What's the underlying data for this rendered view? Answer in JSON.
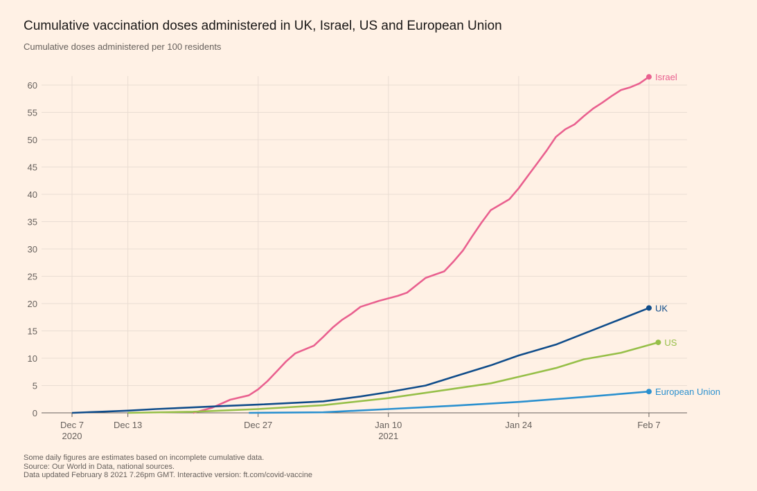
{
  "title": "Cumulative vaccination doses administered in UK, Israel, US and European Union",
  "subtitle": "Cumulative doses administered per 100 residents",
  "footnotes": [
    "Some daily figures are estimates based on incomplete cumulative data.",
    "Source: Our World in Data, national sources.",
    "Data updated February 8 2021 7.26pm GMT. Interactive version: ft.com/covid-vaccine"
  ],
  "chart_data": {
    "type": "line",
    "title": "Cumulative vaccination doses administered in UK, Israel, US and European Union",
    "ylabel": "Cumulative doses administered per 100 residents",
    "xlim": [
      "2020-12-07",
      "2021-02-07"
    ],
    "ylim": [
      0,
      60
    ],
    "yticks": [
      0,
      5,
      10,
      15,
      20,
      25,
      30,
      35,
      40,
      45,
      50,
      55,
      60
    ],
    "xticks": [
      {
        "date": "2020-12-07",
        "label": "Dec 7",
        "sub": "2020"
      },
      {
        "date": "2020-12-13",
        "label": "Dec 13",
        "sub": ""
      },
      {
        "date": "2020-12-27",
        "label": "Dec 27",
        "sub": ""
      },
      {
        "date": "2021-01-10",
        "label": "Jan 10",
        "sub": "2021"
      },
      {
        "date": "2021-01-24",
        "label": "Jan 24",
        "sub": ""
      },
      {
        "date": "2021-02-07",
        "label": "Feb 7",
        "sub": ""
      }
    ],
    "grid": true,
    "legend": "end-of-line labels",
    "series": [
      {
        "name": "Israel",
        "color": "#e9608f",
        "points": [
          [
            "2020-12-20",
            0
          ],
          [
            "2020-12-22",
            0.9
          ],
          [
            "2020-12-24",
            2.4
          ],
          [
            "2020-12-26",
            3.2
          ],
          [
            "2020-12-27",
            4.3
          ],
          [
            "2020-12-28",
            5.8
          ],
          [
            "2020-12-29",
            7.6
          ],
          [
            "2020-12-30",
            9.4
          ],
          [
            "2020-12-31",
            10.9
          ],
          [
            "2021-01-02",
            12.3
          ],
          [
            "2021-01-03",
            13.9
          ],
          [
            "2021-01-04",
            15.6
          ],
          [
            "2021-01-05",
            17
          ],
          [
            "2021-01-06",
            18.1
          ],
          [
            "2021-01-07",
            19.4
          ],
          [
            "2021-01-09",
            20.5
          ],
          [
            "2021-01-11",
            21.4
          ],
          [
            "2021-01-12",
            22
          ],
          [
            "2021-01-14",
            24.7
          ],
          [
            "2021-01-16",
            25.9
          ],
          [
            "2021-01-17",
            27.7
          ],
          [
            "2021-01-18",
            29.7
          ],
          [
            "2021-01-19",
            32.3
          ],
          [
            "2021-01-20",
            34.8
          ],
          [
            "2021-01-21",
            37.1
          ],
          [
            "2021-01-23",
            39.1
          ],
          [
            "2021-01-24",
            41.1
          ],
          [
            "2021-01-25",
            43.4
          ],
          [
            "2021-01-26",
            45.7
          ],
          [
            "2021-01-27",
            48
          ],
          [
            "2021-01-28",
            50.5
          ],
          [
            "2021-01-29",
            51.9
          ],
          [
            "2021-01-30",
            52.8
          ],
          [
            "2021-01-31",
            54.3
          ],
          [
            "2021-02-01",
            55.7
          ],
          [
            "2021-02-02",
            56.8
          ],
          [
            "2021-02-03",
            58
          ],
          [
            "2021-02-04",
            59.1
          ],
          [
            "2021-02-05",
            59.6
          ],
          [
            "2021-02-06",
            60.3
          ],
          [
            "2021-02-07",
            61.5
          ]
        ]
      },
      {
        "name": "UK",
        "color": "#0f4c8a",
        "points": [
          [
            "2020-12-07",
            0
          ],
          [
            "2020-12-10",
            0.2
          ],
          [
            "2020-12-13",
            0.4
          ],
          [
            "2020-12-16",
            0.7
          ],
          [
            "2020-12-20",
            1.0
          ],
          [
            "2020-12-24",
            1.3
          ],
          [
            "2020-12-27",
            1.5
          ],
          [
            "2021-01-03",
            2.1
          ],
          [
            "2021-01-07",
            3.0
          ],
          [
            "2021-01-10",
            3.8
          ],
          [
            "2021-01-14",
            5.0
          ],
          [
            "2021-01-17",
            6.6
          ],
          [
            "2021-01-21",
            8.7
          ],
          [
            "2021-01-24",
            10.5
          ],
          [
            "2021-01-28",
            12.5
          ],
          [
            "2021-01-31",
            14.5
          ],
          [
            "2021-02-03",
            16.5
          ],
          [
            "2021-02-07",
            19.2
          ]
        ]
      },
      {
        "name": "US",
        "color": "#96bf48",
        "points": [
          [
            "2020-12-13",
            0
          ],
          [
            "2020-12-20",
            0.2
          ],
          [
            "2020-12-27",
            0.7
          ],
          [
            "2021-01-03",
            1.4
          ],
          [
            "2021-01-10",
            2.7
          ],
          [
            "2021-01-17",
            4.4
          ],
          [
            "2021-01-21",
            5.4
          ],
          [
            "2021-01-24",
            6.6
          ],
          [
            "2021-01-28",
            8.2
          ],
          [
            "2021-01-31",
            9.8
          ],
          [
            "2021-02-04",
            11.0
          ],
          [
            "2021-02-08",
            12.9
          ]
        ]
      },
      {
        "name": "European Union",
        "color": "#2a90cf",
        "points": [
          [
            "2020-12-26",
            0
          ],
          [
            "2021-01-03",
            0.1
          ],
          [
            "2021-01-10",
            0.7
          ],
          [
            "2021-01-17",
            1.3
          ],
          [
            "2021-01-24",
            2.0
          ],
          [
            "2021-01-31",
            2.9
          ],
          [
            "2021-02-07",
            3.9
          ]
        ]
      }
    ]
  }
}
